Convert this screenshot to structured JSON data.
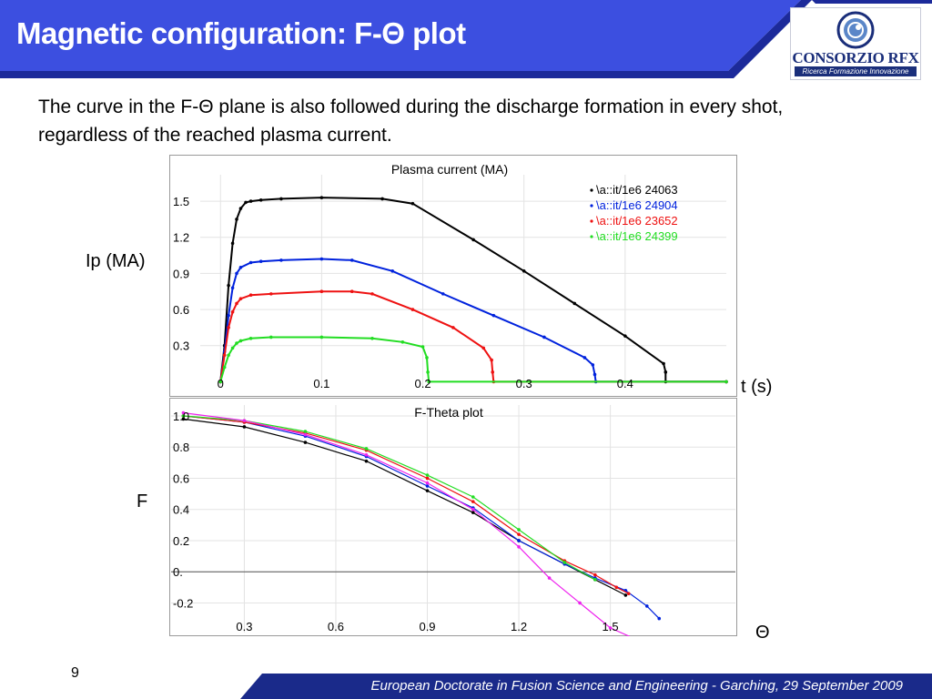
{
  "slide": {
    "title": "Magnetic configuration: F-Θ plot",
    "intro": "The curve in the F-Θ plane is also followed during the discharge formation in every shot, regardless of the reached plasma current.",
    "page_number": "9",
    "footer": "European Doctorate in Fusion Science and Engineering  -  Garching, 29 September 2009",
    "colors": {
      "title_bar": "#3c4fe0",
      "title_bar_dark": "#1c2a9a",
      "footer": "#1a2a8a"
    }
  },
  "logo": {
    "name": "CONSORZIO RFX",
    "subtitle": "Ricerca Formazione Innovazione"
  },
  "side_labels": {
    "ip": "Ip (MA)",
    "time": "t (s)",
    "f": "F",
    "theta": "Θ"
  },
  "chart_data": [
    {
      "type": "line",
      "title": "Plasma current (MA)",
      "xlim": [
        -0.02,
        0.5
      ],
      "ylim": [
        -0.05,
        1.72
      ],
      "x_ticks": [
        0,
        0.1,
        0.2,
        0.3,
        0.4
      ],
      "x_tick_labels": [
        "0",
        "0.1",
        "0.2",
        "0.3",
        "0.4"
      ],
      "y_ticks": [
        0.3,
        0.6,
        0.9,
        1.2,
        1.5
      ],
      "y_tick_labels": [
        "0.3",
        "0.6",
        "0.9",
        "1.2",
        "1.5"
      ],
      "legend_position": "top-right",
      "series": [
        {
          "name": "\\a::it/1e6 24063",
          "color": "#000000",
          "x": [
            0,
            0.004,
            0.008,
            0.012,
            0.016,
            0.02,
            0.025,
            0.03,
            0.04,
            0.06,
            0.1,
            0.16,
            0.19,
            0.25,
            0.3,
            0.35,
            0.4,
            0.438,
            0.44,
            0.44,
            0.5
          ],
          "y": [
            0,
            0.3,
            0.8,
            1.15,
            1.35,
            1.44,
            1.49,
            1.5,
            1.51,
            1.52,
            1.53,
            1.52,
            1.48,
            1.18,
            0.92,
            0.65,
            0.38,
            0.15,
            0.08,
            0,
            0
          ]
        },
        {
          "name": "\\a::it/1e6 24904",
          "color": "#0022dd",
          "x": [
            0,
            0.004,
            0.008,
            0.012,
            0.016,
            0.02,
            0.03,
            0.04,
            0.06,
            0.1,
            0.13,
            0.17,
            0.22,
            0.27,
            0.32,
            0.36,
            0.368,
            0.37,
            0.371,
            0.5
          ],
          "y": [
            0,
            0.25,
            0.55,
            0.78,
            0.9,
            0.95,
            0.99,
            1.0,
            1.01,
            1.02,
            1.01,
            0.92,
            0.73,
            0.55,
            0.37,
            0.2,
            0.14,
            0.06,
            0,
            0
          ]
        },
        {
          "name": "\\a::it/1e6 23652",
          "color": "#ee1111",
          "x": [
            0,
            0.004,
            0.008,
            0.012,
            0.016,
            0.02,
            0.03,
            0.05,
            0.1,
            0.13,
            0.15,
            0.19,
            0.23,
            0.26,
            0.268,
            0.269,
            0.27,
            0.5
          ],
          "y": [
            0,
            0.22,
            0.45,
            0.58,
            0.65,
            0.69,
            0.72,
            0.73,
            0.75,
            0.75,
            0.73,
            0.6,
            0.45,
            0.28,
            0.18,
            0.08,
            0,
            0
          ]
        },
        {
          "name": "\\a::it/1e6 24399",
          "color": "#22dd22",
          "x": [
            0,
            0.004,
            0.008,
            0.012,
            0.016,
            0.02,
            0.03,
            0.05,
            0.1,
            0.15,
            0.18,
            0.2,
            0.204,
            0.205,
            0.206,
            0.5
          ],
          "y": [
            0,
            0.12,
            0.22,
            0.28,
            0.32,
            0.34,
            0.36,
            0.37,
            0.37,
            0.36,
            0.33,
            0.29,
            0.2,
            0.08,
            0,
            0
          ]
        }
      ]
    },
    {
      "type": "scatter",
      "title": "F-Theta plot",
      "xlim": [
        0.06,
        1.91
      ],
      "ylim": [
        -0.39,
        1.07
      ],
      "x_ticks": [
        0.3,
        0.6,
        0.9,
        1.2,
        1.5
      ],
      "x_tick_labels": [
        "0.3",
        "0.6",
        "0.9",
        "1.2",
        "1.5"
      ],
      "y_ticks": [
        1.0,
        0.8,
        0.6,
        0.4,
        0.2,
        0,
        -0.2
      ],
      "y_tick_labels": [
        "1.0",
        "0.8",
        "0.6",
        "0.4",
        "0.2",
        "0.",
        "-0.2"
      ],
      "series": [
        {
          "color": "#000000",
          "x": [
            0.1,
            0.3,
            0.5,
            0.7,
            0.9,
            1.05,
            1.2,
            1.35,
            1.45,
            1.55
          ],
          "y": [
            0.98,
            0.93,
            0.83,
            0.71,
            0.52,
            0.38,
            0.2,
            0.05,
            -0.05,
            -0.15
          ]
        },
        {
          "color": "#0022dd",
          "x": [
            0.1,
            0.3,
            0.5,
            0.7,
            0.9,
            1.05,
            1.2,
            1.35,
            1.45,
            1.55,
            1.62,
            1.66
          ],
          "y": [
            1.0,
            0.96,
            0.87,
            0.74,
            0.55,
            0.41,
            0.2,
            0.05,
            -0.04,
            -0.12,
            -0.22,
            -0.3
          ]
        },
        {
          "color": "#ee1111",
          "x": [
            0.1,
            0.3,
            0.5,
            0.7,
            0.9,
            1.05,
            1.2,
            1.35,
            1.45,
            1.52,
            1.56
          ],
          "y": [
            1.0,
            0.96,
            0.89,
            0.78,
            0.6,
            0.45,
            0.24,
            0.07,
            -0.02,
            -0.1,
            -0.14
          ]
        },
        {
          "color": "#22dd22",
          "x": [
            0.1,
            0.3,
            0.5,
            0.7,
            0.9,
            1.05,
            1.2,
            1.35,
            1.45
          ],
          "y": [
            1.0,
            0.97,
            0.9,
            0.79,
            0.62,
            0.48,
            0.27,
            0.06,
            -0.05
          ]
        },
        {
          "color": "#ee22ee",
          "x": [
            0.1,
            0.3,
            0.5,
            0.7,
            0.9,
            1.05,
            1.2,
            1.3,
            1.4,
            1.5,
            1.58
          ],
          "y": [
            1.02,
            0.97,
            0.88,
            0.75,
            0.57,
            0.4,
            0.16,
            -0.04,
            -0.2,
            -0.36,
            -0.43
          ]
        }
      ]
    }
  ]
}
